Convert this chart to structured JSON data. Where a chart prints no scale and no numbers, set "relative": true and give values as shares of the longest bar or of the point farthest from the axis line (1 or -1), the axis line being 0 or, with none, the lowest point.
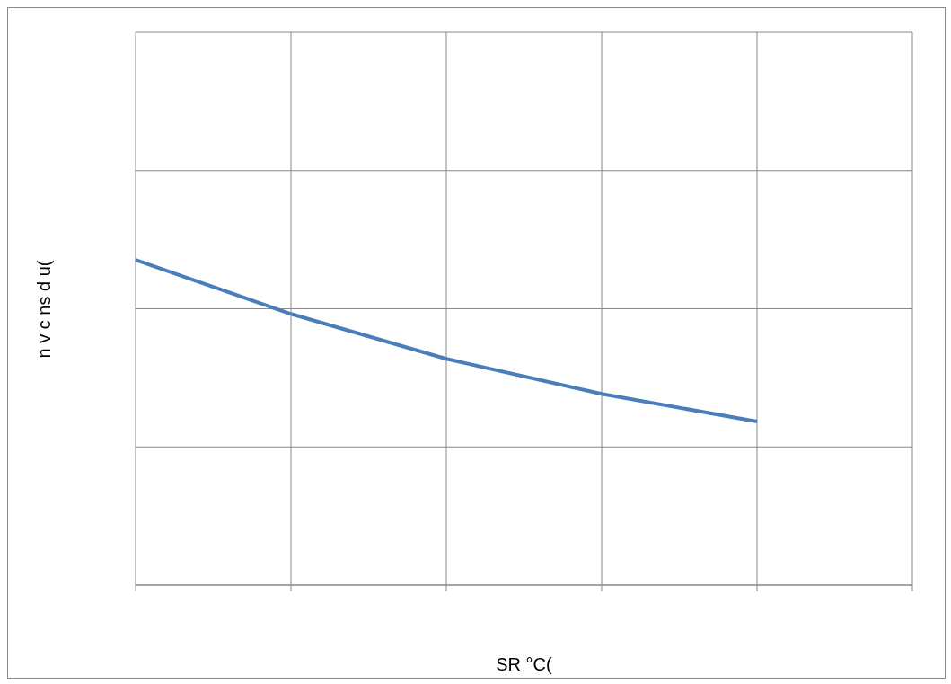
{
  "chart_data": {
    "type": "line",
    "xlabel": "SR °C(",
    "ylabel": "n v c ns d u(",
    "categories": [
      null,
      null,
      null,
      null,
      null,
      null
    ],
    "series": [
      {
        "color": "#4a7ebb",
        "values": [
          1,
          0.834,
          0.696,
          0.588,
          0.503,
          null
        ]
      }
    ],
    "relative": true,
    "grid": true,
    "marker": "none",
    "line_style": "solid"
  }
}
